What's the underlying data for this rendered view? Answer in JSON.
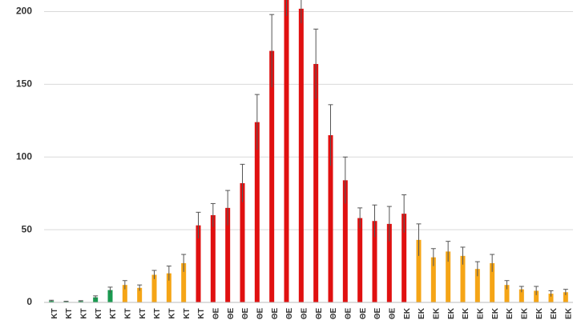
{
  "chart_data": {
    "type": "bar",
    "categories": [
      "ΚΤ",
      "ΚΤ",
      "ΚΤ",
      "ΚΤ",
      "ΚΤ",
      "ΚΤ",
      "ΚΤ",
      "ΚΤ",
      "ΚΤ",
      "ΚΤ",
      "ΚΤ",
      "ΘΕ",
      "ΘΕ",
      "ΘΕ",
      "ΘΕ",
      "ΘΕ",
      "ΘΕ",
      "ΘΕ",
      "ΘΕ",
      "ΘΕ",
      "ΘΕ",
      "ΘΕ",
      "ΘΕ",
      "ΘΕ",
      "ΕΚ",
      "ΕΚ",
      "ΕΚ",
      "ΕΚ",
      "ΕΚ",
      "ΕΚ",
      "ΕΚ",
      "ΕΚ",
      "ΕΚ",
      "ΕΚ",
      "ΕΚ",
      "ΕΚ"
    ],
    "values": [
      1,
      0.5,
      0.8,
      3.5,
      8.5,
      12,
      10,
      19,
      20,
      27,
      53,
      60,
      65,
      82,
      124,
      173,
      212,
      202,
      164,
      115,
      84,
      58,
      56,
      54,
      61,
      43,
      31,
      35,
      32,
      23,
      27,
      12,
      9,
      8,
      6,
      7
    ],
    "errors": [
      0.5,
      0.3,
      0.4,
      1,
      2,
      3,
      2,
      3,
      5,
      6,
      9,
      8,
      12,
      13,
      19,
      25,
      15,
      10,
      24,
      21,
      16,
      7,
      11,
      12,
      13,
      11,
      6,
      7,
      6,
      5,
      6,
      3,
      2,
      3,
      2,
      2
    ],
    "colors": [
      "#1a9a50",
      "#1a9a50",
      "#1a9a50",
      "#1a9a50",
      "#1a9a50",
      "#f5a516",
      "#f5a516",
      "#f5a516",
      "#f5a516",
      "#f5a516",
      "#e01010",
      "#e01010",
      "#e01010",
      "#e01010",
      "#e01010",
      "#e01010",
      "#e01010",
      "#e01010",
      "#e01010",
      "#e01010",
      "#e01010",
      "#e01010",
      "#e01010",
      "#e01010",
      "#e01010",
      "#f5a516",
      "#f5a516",
      "#f5a516",
      "#f5a516",
      "#f5a516",
      "#f5a516",
      "#f5a516",
      "#f5a516",
      "#f5a516",
      "#f5a516",
      "#f5a516"
    ],
    "ylim": [
      0,
      208
    ],
    "yticks": [
      0,
      50,
      100,
      150,
      200
    ],
    "grid": true
  }
}
